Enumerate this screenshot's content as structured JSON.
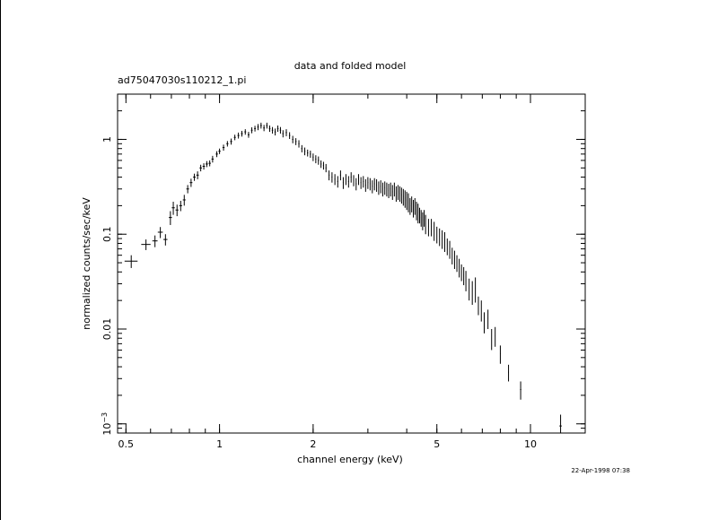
{
  "chart_data": {
    "type": "scatter",
    "title": "data and folded model",
    "subtitle": "ad75047030s110212_1.pi",
    "xlabel": "channel energy (keV)",
    "ylabel": "normalized counts/sec/keV",
    "timestamp": "22-Apr-1998 07:38",
    "x_scale": "log",
    "y_scale": "log",
    "xlim": [
      0.47,
      15.0
    ],
    "ylim": [
      0.0008,
      3.0
    ],
    "x_ticks": [
      {
        "value": 0.5,
        "label": "0.5"
      },
      {
        "value": 1,
        "label": "1"
      },
      {
        "value": 2,
        "label": "2"
      },
      {
        "value": 5,
        "label": "5"
      },
      {
        "value": 10,
        "label": "10"
      }
    ],
    "y_ticks": [
      {
        "value": 0.001,
        "label": "10",
        "sup": "−3"
      },
      {
        "value": 0.01,
        "label": "0.01"
      },
      {
        "value": 0.1,
        "label": "0.1"
      },
      {
        "value": 1,
        "label": "1"
      }
    ],
    "grid": false,
    "series": [
      {
        "points": [
          [
            0.52,
            0.052,
            0.025,
            0.008
          ],
          [
            0.58,
            0.078,
            0.02,
            0.01
          ],
          [
            0.62,
            0.085,
            0.012,
            0.012
          ],
          [
            0.645,
            0.105,
            0.012,
            0.014
          ],
          [
            0.67,
            0.088,
            0.01,
            0.012
          ],
          [
            0.695,
            0.15,
            0.008,
            0.025
          ],
          [
            0.71,
            0.19,
            0.008,
            0.03
          ],
          [
            0.73,
            0.18,
            0.008,
            0.025
          ],
          [
            0.75,
            0.2,
            0.008,
            0.025
          ],
          [
            0.77,
            0.23,
            0.008,
            0.03
          ],
          [
            0.79,
            0.3,
            0.008,
            0.03
          ],
          [
            0.81,
            0.35,
            0.008,
            0.035
          ],
          [
            0.83,
            0.4,
            0.008,
            0.035
          ],
          [
            0.85,
            0.42,
            0.008,
            0.04
          ],
          [
            0.87,
            0.5,
            0.008,
            0.04
          ],
          [
            0.89,
            0.52,
            0.008,
            0.04
          ],
          [
            0.91,
            0.55,
            0.008,
            0.04
          ],
          [
            0.93,
            0.56,
            0.008,
            0.04
          ],
          [
            0.95,
            0.62,
            0.008,
            0.05
          ],
          [
            0.98,
            0.7,
            0.008,
            0.05
          ],
          [
            1.0,
            0.75,
            0.008,
            0.05
          ],
          [
            1.03,
            0.82,
            0.008,
            0.06
          ],
          [
            1.06,
            0.9,
            0.008,
            0.06
          ],
          [
            1.09,
            0.95,
            0.008,
            0.07
          ],
          [
            1.12,
            1.05,
            0.008,
            0.07
          ],
          [
            1.15,
            1.1,
            0.008,
            0.08
          ],
          [
            1.18,
            1.15,
            0.008,
            0.08
          ],
          [
            1.21,
            1.2,
            0.008,
            0.08
          ],
          [
            1.24,
            1.12,
            0.008,
            0.08
          ],
          [
            1.27,
            1.25,
            0.008,
            0.09
          ],
          [
            1.3,
            1.3,
            0.008,
            0.09
          ],
          [
            1.33,
            1.35,
            0.008,
            0.1
          ],
          [
            1.36,
            1.4,
            0.008,
            0.1
          ],
          [
            1.39,
            1.32,
            0.008,
            0.1
          ],
          [
            1.42,
            1.4,
            0.008,
            0.1
          ],
          [
            1.45,
            1.3,
            0.008,
            0.1
          ],
          [
            1.48,
            1.25,
            0.008,
            0.1
          ],
          [
            1.51,
            1.2,
            0.008,
            0.1
          ],
          [
            1.54,
            1.3,
            0.008,
            0.1
          ],
          [
            1.57,
            1.25,
            0.008,
            0.1
          ],
          [
            1.6,
            1.15,
            0.008,
            0.1
          ],
          [
            1.64,
            1.18,
            0.008,
            0.1
          ],
          [
            1.68,
            1.1,
            0.008,
            0.09
          ],
          [
            1.72,
            1.0,
            0.008,
            0.09
          ],
          [
            1.76,
            0.95,
            0.008,
            0.08
          ],
          [
            1.8,
            0.9,
            0.008,
            0.08
          ],
          [
            1.84,
            0.8,
            0.008,
            0.07
          ],
          [
            1.88,
            0.75,
            0.008,
            0.07
          ],
          [
            1.92,
            0.72,
            0.008,
            0.06
          ],
          [
            1.96,
            0.7,
            0.008,
            0.06
          ],
          [
            2.0,
            0.65,
            0.008,
            0.06
          ],
          [
            2.04,
            0.62,
            0.008,
            0.06
          ],
          [
            2.08,
            0.6,
            0.008,
            0.06
          ],
          [
            2.12,
            0.55,
            0.008,
            0.05
          ],
          [
            2.16,
            0.53,
            0.008,
            0.05
          ],
          [
            2.2,
            0.5,
            0.008,
            0.05
          ],
          [
            2.25,
            0.42,
            0.008,
            0.05
          ],
          [
            2.3,
            0.4,
            0.008,
            0.05
          ],
          [
            2.35,
            0.38,
            0.008,
            0.05
          ],
          [
            2.4,
            0.36,
            0.008,
            0.05
          ],
          [
            2.45,
            0.42,
            0.008,
            0.05
          ],
          [
            2.5,
            0.35,
            0.008,
            0.05
          ],
          [
            2.55,
            0.38,
            0.008,
            0.05
          ],
          [
            2.6,
            0.36,
            0.008,
            0.05
          ],
          [
            2.65,
            0.4,
            0.008,
            0.05
          ],
          [
            2.7,
            0.37,
            0.008,
            0.05
          ],
          [
            2.75,
            0.34,
            0.008,
            0.05
          ],
          [
            2.8,
            0.38,
            0.008,
            0.05
          ],
          [
            2.85,
            0.35,
            0.008,
            0.05
          ],
          [
            2.9,
            0.36,
            0.008,
            0.05
          ],
          [
            2.95,
            0.33,
            0.008,
            0.05
          ],
          [
            3.0,
            0.35,
            0.008,
            0.05
          ],
          [
            3.05,
            0.34,
            0.008,
            0.05
          ],
          [
            3.1,
            0.32,
            0.008,
            0.05
          ],
          [
            3.15,
            0.34,
            0.008,
            0.05
          ],
          [
            3.2,
            0.33,
            0.008,
            0.05
          ],
          [
            3.25,
            0.31,
            0.008,
            0.05
          ],
          [
            3.3,
            0.32,
            0.008,
            0.05
          ],
          [
            3.35,
            0.3,
            0.008,
            0.05
          ],
          [
            3.4,
            0.31,
            0.008,
            0.05
          ],
          [
            3.45,
            0.3,
            0.008,
            0.05
          ],
          [
            3.5,
            0.29,
            0.008,
            0.05
          ],
          [
            3.55,
            0.3,
            0.008,
            0.05
          ],
          [
            3.6,
            0.28,
            0.008,
            0.05
          ],
          [
            3.65,
            0.3,
            0.008,
            0.05
          ],
          [
            3.7,
            0.27,
            0.008,
            0.05
          ],
          [
            3.75,
            0.28,
            0.008,
            0.05
          ],
          [
            3.8,
            0.27,
            0.008,
            0.05
          ],
          [
            3.85,
            0.26,
            0.008,
            0.05
          ],
          [
            3.9,
            0.25,
            0.008,
            0.05
          ],
          [
            3.95,
            0.24,
            0.008,
            0.05
          ],
          [
            4.0,
            0.23,
            0.008,
            0.05
          ],
          [
            4.05,
            0.22,
            0.008,
            0.05
          ],
          [
            4.1,
            0.2,
            0.008,
            0.04
          ],
          [
            4.15,
            0.21,
            0.008,
            0.04
          ],
          [
            4.2,
            0.19,
            0.008,
            0.04
          ],
          [
            4.25,
            0.2,
            0.008,
            0.04
          ],
          [
            4.3,
            0.18,
            0.008,
            0.04
          ],
          [
            4.35,
            0.17,
            0.008,
            0.04
          ],
          [
            4.4,
            0.16,
            0.008,
            0.03
          ],
          [
            4.45,
            0.15,
            0.008,
            0.03
          ],
          [
            4.5,
            0.14,
            0.008,
            0.03
          ],
          [
            4.55,
            0.15,
            0.008,
            0.03
          ],
          [
            4.6,
            0.13,
            0.008,
            0.03
          ],
          [
            4.7,
            0.12,
            0.008,
            0.025
          ],
          [
            4.8,
            0.12,
            0.008,
            0.025
          ],
          [
            4.9,
            0.11,
            0.008,
            0.025
          ],
          [
            5.0,
            0.1,
            0.008,
            0.02
          ],
          [
            5.1,
            0.095,
            0.008,
            0.02
          ],
          [
            5.2,
            0.09,
            0.008,
            0.02
          ],
          [
            5.3,
            0.085,
            0.008,
            0.02
          ],
          [
            5.4,
            0.075,
            0.008,
            0.015
          ],
          [
            5.5,
            0.07,
            0.008,
            0.015
          ],
          [
            5.6,
            0.06,
            0.008,
            0.012
          ],
          [
            5.7,
            0.055,
            0.008,
            0.012
          ],
          [
            5.8,
            0.05,
            0.008,
            0.01
          ],
          [
            5.9,
            0.045,
            0.008,
            0.01
          ],
          [
            6.0,
            0.04,
            0.008,
            0.008
          ],
          [
            6.1,
            0.037,
            0.008,
            0.008
          ],
          [
            6.2,
            0.033,
            0.008,
            0.008
          ],
          [
            6.35,
            0.027,
            0.01,
            0.007
          ],
          [
            6.5,
            0.025,
            0.01,
            0.007
          ],
          [
            6.65,
            0.027,
            0.01,
            0.008
          ],
          [
            6.8,
            0.018,
            0.01,
            0.004
          ],
          [
            6.95,
            0.016,
            0.01,
            0.004
          ],
          [
            7.1,
            0.012,
            0.012,
            0.003
          ],
          [
            7.3,
            0.013,
            0.012,
            0.003
          ],
          [
            7.5,
            0.008,
            0.012,
            0.002
          ],
          [
            7.7,
            0.0085,
            0.012,
            0.002
          ],
          [
            8.0,
            0.0055,
            0.015,
            0.0012
          ],
          [
            8.5,
            0.0035,
            0.025,
            0.0007
          ],
          [
            9.3,
            0.0023,
            0.04,
            0.0005
          ],
          [
            12.5,
            0.00095,
            0.11,
            0.0003
          ]
        ]
      }
    ]
  }
}
